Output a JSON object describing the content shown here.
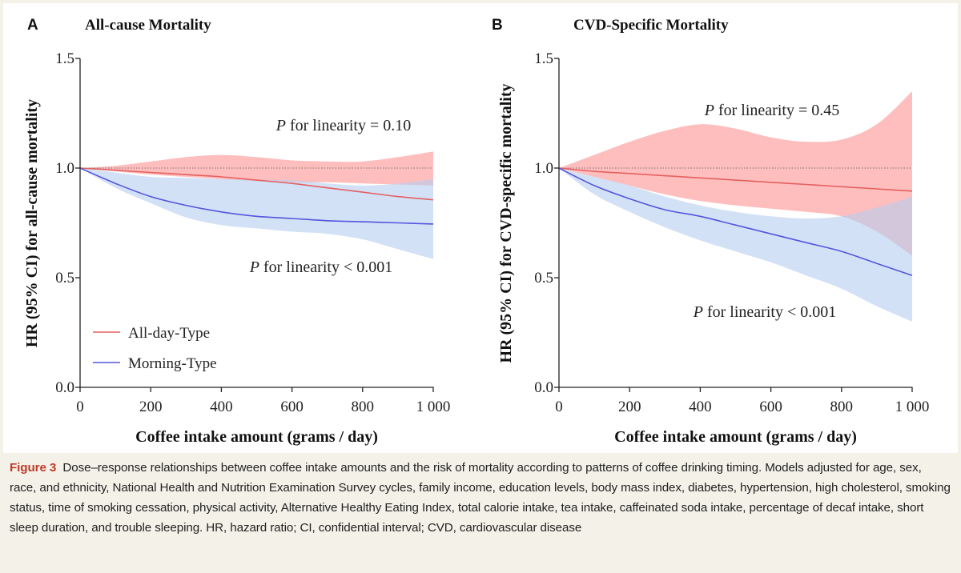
{
  "chart_data": [
    {
      "type": "line",
      "panel_letter": "A",
      "title": "All-cause Mortality",
      "xlabel": "Coffee intake amount (grams / day)",
      "ylabel": "HR (95% CI) for all-cause mortality",
      "xlim": [
        0,
        1000
      ],
      "ylim": [
        0,
        1.5
      ],
      "xticks": [
        0,
        200,
        400,
        600,
        800,
        1000
      ],
      "xtick_labels": [
        "0",
        "200",
        "400",
        "600",
        "800",
        "1 000"
      ],
      "yticks": [
        0,
        0.5,
        1.0,
        1.5
      ],
      "ytick_labels": [
        "0.0",
        "0.5",
        "1.0",
        "1.5"
      ],
      "reference_line": 1.0,
      "annotations": [
        "P for linearity = 0.10",
        "P for linearity < 0.001"
      ],
      "legend": [
        "All-day-Type",
        "Morning-Type"
      ],
      "series": [
        {
          "name": "All-day-Type",
          "color": "#e46060",
          "band_color": "#ffb3b3",
          "x": [
            0,
            100,
            200,
            300,
            400,
            500,
            600,
            700,
            800,
            900,
            1000
          ],
          "y": [
            1.0,
            0.99,
            0.98,
            0.97,
            0.96,
            0.945,
            0.93,
            0.91,
            0.89,
            0.87,
            0.855
          ],
          "lower": [
            1.0,
            0.985,
            0.97,
            0.96,
            0.95,
            0.94,
            0.935,
            0.935,
            0.93,
            0.925,
            0.92
          ],
          "upper": [
            1.0,
            1.01,
            1.03,
            1.05,
            1.06,
            1.05,
            1.035,
            1.03,
            1.03,
            1.05,
            1.075
          ]
        },
        {
          "name": "Morning-Type",
          "color": "#5555dd",
          "band_color": "#b5cdf0",
          "x": [
            0,
            100,
            200,
            300,
            400,
            500,
            600,
            700,
            800,
            900,
            1000
          ],
          "y": [
            1.0,
            0.93,
            0.87,
            0.83,
            0.8,
            0.78,
            0.77,
            0.76,
            0.755,
            0.75,
            0.745
          ],
          "lower": [
            1.0,
            0.91,
            0.84,
            0.775,
            0.74,
            0.725,
            0.71,
            0.7,
            0.675,
            0.63,
            0.585
          ],
          "upper": [
            1.0,
            0.98,
            0.96,
            0.955,
            0.95,
            0.945,
            0.945,
            0.93,
            0.92,
            0.93,
            0.95
          ]
        }
      ]
    },
    {
      "type": "line",
      "panel_letter": "B",
      "title": "CVD-Specific Mortality",
      "xlabel": "Coffee intake amount (grams / day)",
      "ylabel": "HR (95% CI) for CVD-specific mortality",
      "xlim": [
        0,
        1000
      ],
      "ylim": [
        0,
        1.5
      ],
      "xticks": [
        0,
        200,
        400,
        600,
        800,
        1000
      ],
      "xtick_labels": [
        "0",
        "200",
        "400",
        "600",
        "800",
        "1 000"
      ],
      "yticks": [
        0,
        0.5,
        1.0,
        1.5
      ],
      "ytick_labels": [
        "0.0",
        "0.5",
        "1.0",
        "1.5"
      ],
      "reference_line": 1.0,
      "annotations": [
        "P for linearity = 0.45",
        "P for linearity < 0.001"
      ],
      "series": [
        {
          "name": "All-day-Type",
          "color": "#e46060",
          "band_color": "#ffb3b3",
          "x": [
            0,
            100,
            200,
            300,
            400,
            500,
            600,
            700,
            800,
            900,
            1000
          ],
          "y": [
            1.0,
            0.985,
            0.975,
            0.965,
            0.955,
            0.945,
            0.935,
            0.925,
            0.915,
            0.905,
            0.895
          ],
          "lower": [
            1.0,
            0.96,
            0.92,
            0.88,
            0.85,
            0.83,
            0.815,
            0.8,
            0.78,
            0.71,
            0.6
          ],
          "upper": [
            1.0,
            1.06,
            1.12,
            1.17,
            1.2,
            1.18,
            1.14,
            1.12,
            1.13,
            1.2,
            1.35
          ]
        },
        {
          "name": "Morning-Type",
          "color": "#5555dd",
          "band_color": "#b5cdf0",
          "x": [
            0,
            100,
            200,
            300,
            400,
            500,
            600,
            700,
            800,
            900,
            1000
          ],
          "y": [
            1.0,
            0.92,
            0.86,
            0.81,
            0.78,
            0.74,
            0.7,
            0.66,
            0.62,
            0.565,
            0.51
          ],
          "lower": [
            1.0,
            0.88,
            0.8,
            0.73,
            0.67,
            0.62,
            0.57,
            0.51,
            0.45,
            0.37,
            0.3
          ],
          "upper": [
            1.0,
            0.96,
            0.92,
            0.87,
            0.83,
            0.8,
            0.78,
            0.77,
            0.78,
            0.82,
            0.87
          ]
        }
      ]
    }
  ],
  "caption": {
    "label": "Figure 3",
    "text": "Dose–response relationships between coffee intake amounts and the risk of mortality according to patterns of coffee drinking timing. Models adjusted for age, sex, race, and ethnicity, National Health and Nutrition Examination Survey cycles, family income, education levels, body mass index, diabetes, hypertension, high cholesterol, smoking status, time of smoking cessation, physical activity, Alternative Healthy Eating Index, total calorie intake, tea intake, caffeinated soda intake, percentage of decaf intake, short sleep duration, and trouble sleeping. HR, hazard ratio; CI, confidential interval; CVD, cardiovascular disease"
  }
}
